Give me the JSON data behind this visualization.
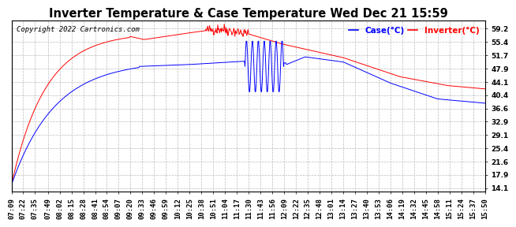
{
  "title": "Inverter Temperature & Case Temperature Wed Dec 21 15:59",
  "copyright": "Copyright 2022 Cartronics.com",
  "legend_case": "Case(°C)",
  "legend_inverter": "Inverter(°C)",
  "yticks": [
    14.1,
    17.9,
    21.6,
    25.4,
    29.1,
    32.9,
    36.6,
    40.4,
    44.1,
    47.9,
    51.7,
    55.4,
    59.2
  ],
  "ylim": [
    13.0,
    61.5
  ],
  "case_color": "blue",
  "inverter_color": "red",
  "background_color": "#ffffff",
  "grid_color": "#bbbbbb",
  "title_fontsize": 10.5,
  "tick_fontsize": 6.5,
  "copyright_fontsize": 6.5,
  "xtick_labels": [
    "07:09",
    "07:22",
    "07:35",
    "07:49",
    "08:02",
    "08:15",
    "08:28",
    "08:41",
    "08:54",
    "09:07",
    "09:20",
    "09:33",
    "09:46",
    "09:59",
    "10:12",
    "10:25",
    "10:38",
    "10:51",
    "11:04",
    "11:17",
    "11:30",
    "11:43",
    "11:56",
    "12:09",
    "12:22",
    "12:35",
    "12:48",
    "13:01",
    "13:14",
    "13:27",
    "13:40",
    "13:53",
    "14:06",
    "14:19",
    "14:32",
    "14:45",
    "14:58",
    "15:11",
    "15:24",
    "15:37",
    "15:50"
  ],
  "total_minutes": 521
}
